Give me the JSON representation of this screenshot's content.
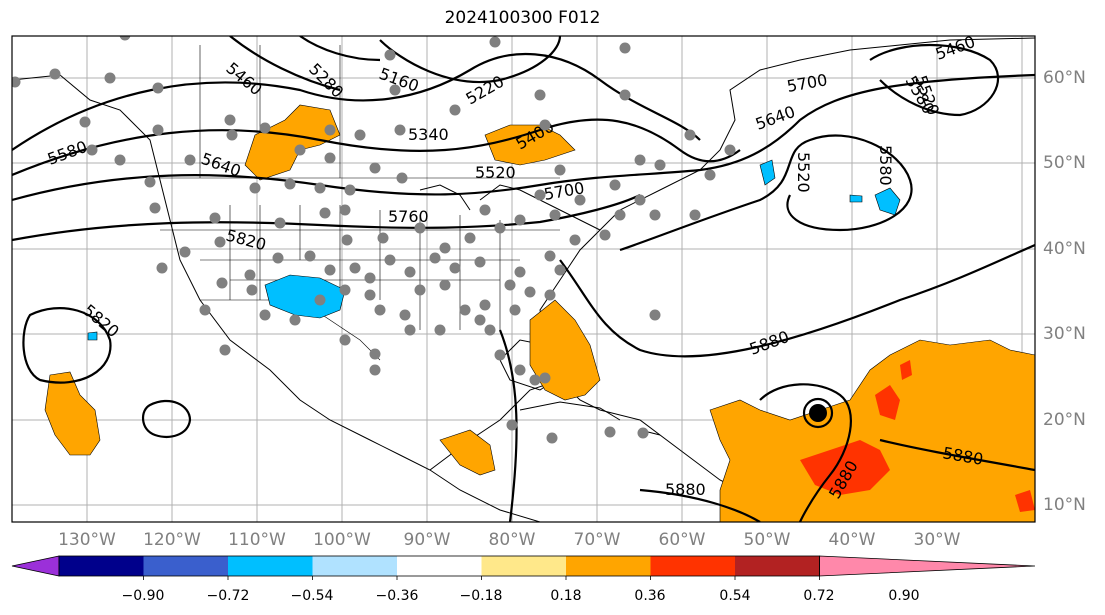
{
  "title": "2024100300 F012",
  "longitude_labels": [
    "130°W",
    "120°W",
    "110°W",
    "100°W",
    "90°W",
    "80°W",
    "70°W",
    "60°W",
    "50°W",
    "40°W",
    "30°W"
  ],
  "latitude_labels": [
    "60°N",
    "50°N",
    "40°N",
    "30°N",
    "20°N",
    "10°N"
  ],
  "contour_labels": [
    "5160",
    "5220",
    "5280",
    "5340",
    "5400",
    "5460",
    "5520",
    "5580",
    "5640",
    "5700",
    "5760",
    "5820",
    "5880"
  ],
  "colorbar": {
    "ticks": [
      "−0.90",
      "−0.72",
      "−0.54",
      "−0.36",
      "−0.18",
      "0.18",
      "0.36",
      "0.54",
      "0.72",
      "0.90"
    ],
    "colors": [
      "#9b30d9",
      "#00008b",
      "#3a5fcd",
      "#00bfff",
      "#b0e2ff",
      "#ffffff",
      "#ffe88a",
      "#ffa500",
      "#ff3300",
      "#b22222",
      "#ff88aa"
    ]
  },
  "colors": {
    "positive_shade": "#ffa500",
    "strong_positive": "#ff3300",
    "negative_shade": "#00bfff",
    "stations": "#808080",
    "contours": "#000000",
    "grid": "#b0b0b0"
  }
}
